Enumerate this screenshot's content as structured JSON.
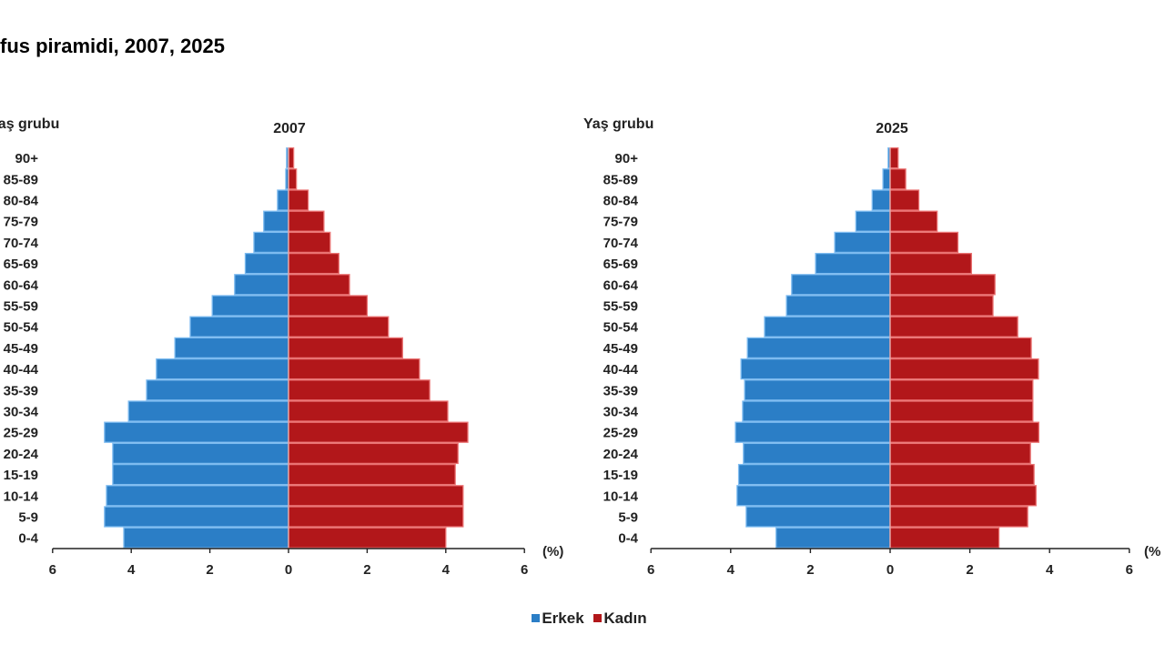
{
  "page": {
    "title": "fus piramidi, 2007, 2025"
  },
  "colors": {
    "male": "#2b7ec6",
    "male_edge": "#7dbbf0",
    "female": "#b2171a",
    "female_edge": "#ea7373",
    "axis": "#222222"
  },
  "legend": {
    "male_label": "Erkek",
    "female_label": "Kadın"
  },
  "chart_data": [
    {
      "type": "bar",
      "orientation": "horizontal",
      "subtype": "population-pyramid",
      "title": "2007",
      "ylabel": "Yaş grubu",
      "xlabel": "(%)",
      "xlim": [
        -6,
        6
      ],
      "xticks": [
        6,
        4,
        2,
        0,
        2,
        4,
        6
      ],
      "categories": [
        "90+",
        "85-89",
        "80-84",
        "75-79",
        "70-74",
        "65-69",
        "60-64",
        "55-59",
        "50-54",
        "45-49",
        "40-44",
        "35-39",
        "30-34",
        "25-29",
        "20-24",
        "15-19",
        "10-14",
        "5-9",
        "0-4"
      ],
      "series": [
        {
          "name": "Erkek",
          "values": [
            0.05,
            0.07,
            0.28,
            0.63,
            0.88,
            1.1,
            1.37,
            1.94,
            2.5,
            2.89,
            3.36,
            3.61,
            4.07,
            4.68,
            4.47,
            4.47,
            4.63,
            4.68,
            4.19
          ]
        },
        {
          "name": "Kadın",
          "values": [
            0.13,
            0.2,
            0.5,
            0.9,
            1.06,
            1.28,
            1.55,
            2.0,
            2.54,
            2.9,
            3.33,
            3.59,
            4.05,
            4.56,
            4.31,
            4.24,
            4.44,
            4.44,
            4.0
          ]
        }
      ],
      "legend": "bottom"
    },
    {
      "type": "bar",
      "orientation": "horizontal",
      "subtype": "population-pyramid",
      "title": "2025",
      "ylabel": "Yaş grubu",
      "xlabel": "(%",
      "xlim": [
        -6,
        6
      ],
      "xticks": [
        6,
        4,
        2,
        0,
        2,
        4,
        6
      ],
      "categories": [
        "90+",
        "85-89",
        "80-84",
        "75-79",
        "70-74",
        "65-69",
        "60-64",
        "55-59",
        "50-54",
        "45-49",
        "40-44",
        "35-39",
        "30-34",
        "25-29",
        "20-24",
        "15-19",
        "10-14",
        "5-9",
        "0-4"
      ],
      "series": [
        {
          "name": "Erkek",
          "values": [
            0.05,
            0.18,
            0.45,
            0.86,
            1.39,
            1.87,
            2.47,
            2.6,
            3.15,
            3.58,
            3.74,
            3.65,
            3.7,
            3.88,
            3.68,
            3.8,
            3.84,
            3.61,
            2.86
          ]
        },
        {
          "name": "Kadın",
          "values": [
            0.2,
            0.39,
            0.72,
            1.18,
            1.7,
            2.04,
            2.63,
            2.58,
            3.2,
            3.54,
            3.72,
            3.58,
            3.58,
            3.73,
            3.52,
            3.61,
            3.66,
            3.45,
            2.73
          ]
        }
      ],
      "legend": "bottom"
    }
  ]
}
